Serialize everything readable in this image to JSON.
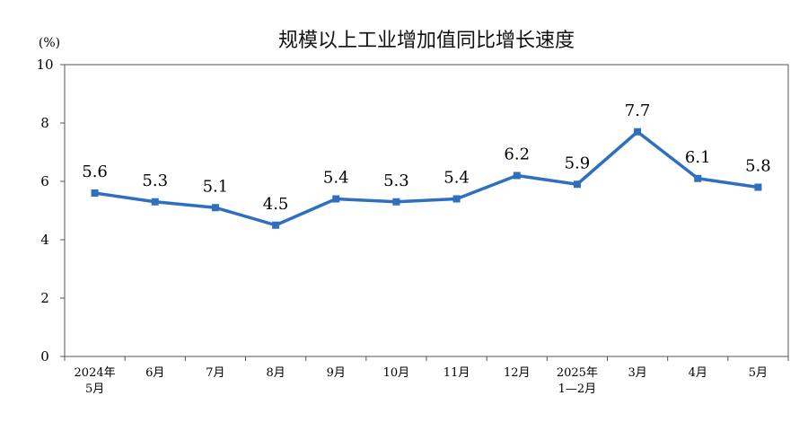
{
  "chart_data": {
    "type": "line",
    "title": "规模以上工业增加值同比增长速度",
    "unit": "(%)",
    "xlabel": "",
    "ylabel": "",
    "ylim": [
      0,
      10
    ],
    "yticks": [
      "0",
      "2",
      "4",
      "6",
      "8",
      "10"
    ],
    "grid": false,
    "legend": "none",
    "line_color": "#2e6fc0",
    "categories": [
      [
        "2024年",
        "5月"
      ],
      [
        "6月"
      ],
      [
        "7月"
      ],
      [
        "8月"
      ],
      [
        "9月"
      ],
      [
        "10月"
      ],
      [
        "11月"
      ],
      [
        "12月"
      ],
      [
        "2025年",
        "1—2月"
      ],
      [
        "3月"
      ],
      [
        "4月"
      ],
      [
        "5月"
      ]
    ],
    "series": [
      {
        "values": [
          5.6,
          5.3,
          5.1,
          4.5,
          5.4,
          5.3,
          5.4,
          6.2,
          5.9,
          7.7,
          6.1,
          5.8
        ]
      }
    ],
    "data_labels": [
      "5.6",
      "5.3",
      "5.1",
      "4.5",
      "5.4",
      "5.3",
      "5.4",
      "6.2",
      "5.9",
      "7.7",
      "6.1",
      "5.8"
    ]
  }
}
